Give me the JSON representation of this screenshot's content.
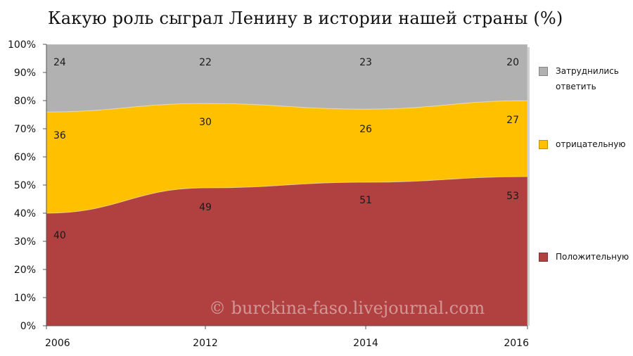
{
  "title": "Какую роль сыграл Ленину в истории нашей страны (%)",
  "watermark": "© burckina-faso.livejournal.com",
  "chart_data": {
    "type": "area",
    "stacked": true,
    "x": [
      "2006",
      "2012",
      "2014",
      "2016"
    ],
    "ylim": [
      0,
      100
    ],
    "yticks": [
      "0%",
      "10%",
      "20%",
      "30%",
      "40%",
      "50%",
      "60%",
      "70%",
      "80%",
      "90%",
      "100%"
    ],
    "grid": false,
    "legend_position": "right",
    "series": [
      {
        "name": "Положительную",
        "values": [
          40,
          49,
          51,
          53
        ],
        "color": "#b04140"
      },
      {
        "name": "отрицательную",
        "values": [
          36,
          30,
          26,
          27
        ],
        "color": "#ffc000"
      },
      {
        "name": "Затруднились ответить",
        "values": [
          24,
          22,
          23,
          20
        ],
        "color": "#b1b1b1"
      }
    ],
    "data_labels": [
      [
        "40",
        "49",
        "51",
        "53"
      ],
      [
        "36",
        "30",
        "26",
        "27"
      ],
      [
        "24",
        "22",
        "23",
        "20"
      ]
    ]
  }
}
